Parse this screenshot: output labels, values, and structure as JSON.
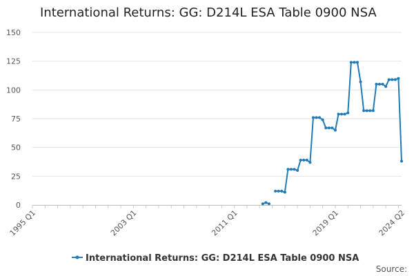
{
  "chart_data": {
    "type": "line",
    "title": "International Returns: GG: D214L ESA Table 0900 NSA",
    "xlabel": "",
    "ylabel": "",
    "ylim": [
      0,
      150
    ],
    "yticks": [
      0,
      25,
      50,
      75,
      100,
      125,
      150
    ],
    "xlim": [
      "1995 Q1",
      "2024 Q2"
    ],
    "xticks": [
      "1995 Q1",
      "2003 Q1",
      "2011 Q1",
      "2019 Q1",
      "2024 Q2"
    ],
    "grid": true,
    "legend_position": "bottom",
    "source_label": "Source:",
    "series": [
      {
        "name": "International Returns: GG: D214L ESA Table 0900 NSA",
        "color": "#1f7ab8",
        "x": [
          "2013 Q2",
          "2013 Q3",
          "2013 Q4",
          "2014 Q2",
          "2014 Q3",
          "2014 Q4",
          "2015 Q1",
          "2015 Q2",
          "2015 Q3",
          "2015 Q4",
          "2016 Q1",
          "2016 Q2",
          "2016 Q3",
          "2016 Q4",
          "2017 Q1",
          "2017 Q2",
          "2017 Q3",
          "2017 Q4",
          "2018 Q1",
          "2018 Q2",
          "2018 Q3",
          "2018 Q4",
          "2019 Q1",
          "2019 Q2",
          "2019 Q3",
          "2019 Q4",
          "2020 Q1",
          "2020 Q2",
          "2020 Q3",
          "2020 Q4",
          "2021 Q1",
          "2021 Q2",
          "2021 Q3",
          "2021 Q4",
          "2022 Q1",
          "2022 Q2",
          "2022 Q3",
          "2022 Q4",
          "2023 Q1",
          "2023 Q2",
          "2023 Q3",
          "2023 Q4",
          "2024 Q1",
          "2024 Q2"
        ],
        "values": [
          1,
          2,
          1,
          12,
          12,
          12,
          11,
          31,
          31,
          31,
          30,
          39,
          39,
          39,
          37,
          76,
          76,
          76,
          74,
          67,
          67,
          67,
          65,
          79,
          79,
          79,
          80,
          124,
          124,
          124,
          107,
          82,
          82,
          82,
          82,
          105,
          105,
          105,
          103,
          109,
          109,
          109,
          110,
          38
        ]
      }
    ]
  }
}
